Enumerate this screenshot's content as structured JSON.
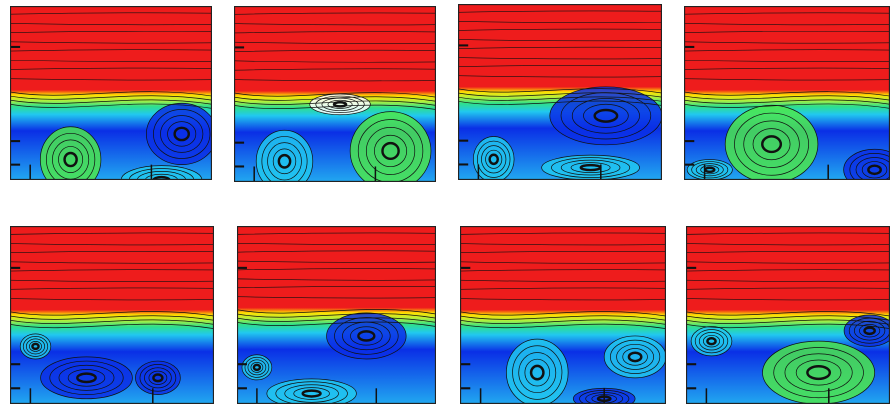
{
  "figure": {
    "rows": 2,
    "columns": 4,
    "panels": [
      {
        "id": "p1"
      },
      {
        "id": "p2"
      },
      {
        "id": "p3"
      },
      {
        "id": "p4"
      },
      {
        "id": "p5"
      },
      {
        "id": "p6"
      },
      {
        "id": "p7"
      },
      {
        "id": "p8"
      }
    ],
    "colors": {
      "free_stream": "#ee1c1c",
      "transition": [
        "#ffe100",
        "#b6f03a",
        "#2fe08a",
        "#21c8f0"
      ],
      "recirculation": "#0a2fe6",
      "streamline": "#111111"
    }
  }
}
